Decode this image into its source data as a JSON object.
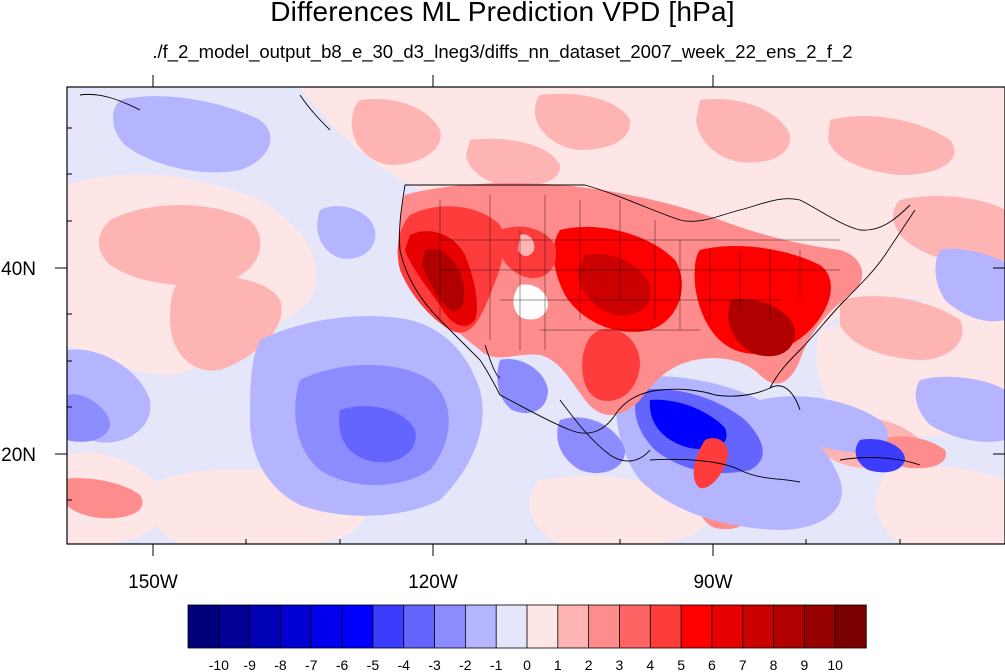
{
  "title": "Differences ML Prediction VPD [hPa]",
  "subtitle": "./f_2_model_output_b8_e_30_d3_lneg3/diffs_nn_dataset_2007_week_22_ens_2_f_2",
  "map": {
    "lon_range": [
      -160,
      -61
    ],
    "lat_range": [
      11,
      60
    ],
    "x_tick_labels": [
      "150W",
      "120W",
      "90W"
    ],
    "y_tick_labels": [
      "40N",
      "20N"
    ]
  },
  "colorbar": {
    "labels": [
      "-10",
      "-9",
      "-8",
      "-7",
      "-6",
      "-5",
      "-4",
      "-3",
      "-2",
      "-1",
      "0",
      "1",
      "2",
      "3",
      "4",
      "5",
      "6",
      "7",
      "8",
      "9",
      "10"
    ],
    "colors": [
      "#00007a",
      "#000096",
      "#0000b4",
      "#0000d2",
      "#0000ee",
      "#0000ff",
      "#3c3cff",
      "#6464ff",
      "#8c8cff",
      "#b4b4ff",
      "#e6e6fa",
      "#fee6e6",
      "#ffb4b4",
      "#ff8c8c",
      "#ff6464",
      "#ff3c3c",
      "#ff0000",
      "#e60000",
      "#cc0000",
      "#b00000",
      "#960000",
      "#7a0000"
    ]
  }
}
